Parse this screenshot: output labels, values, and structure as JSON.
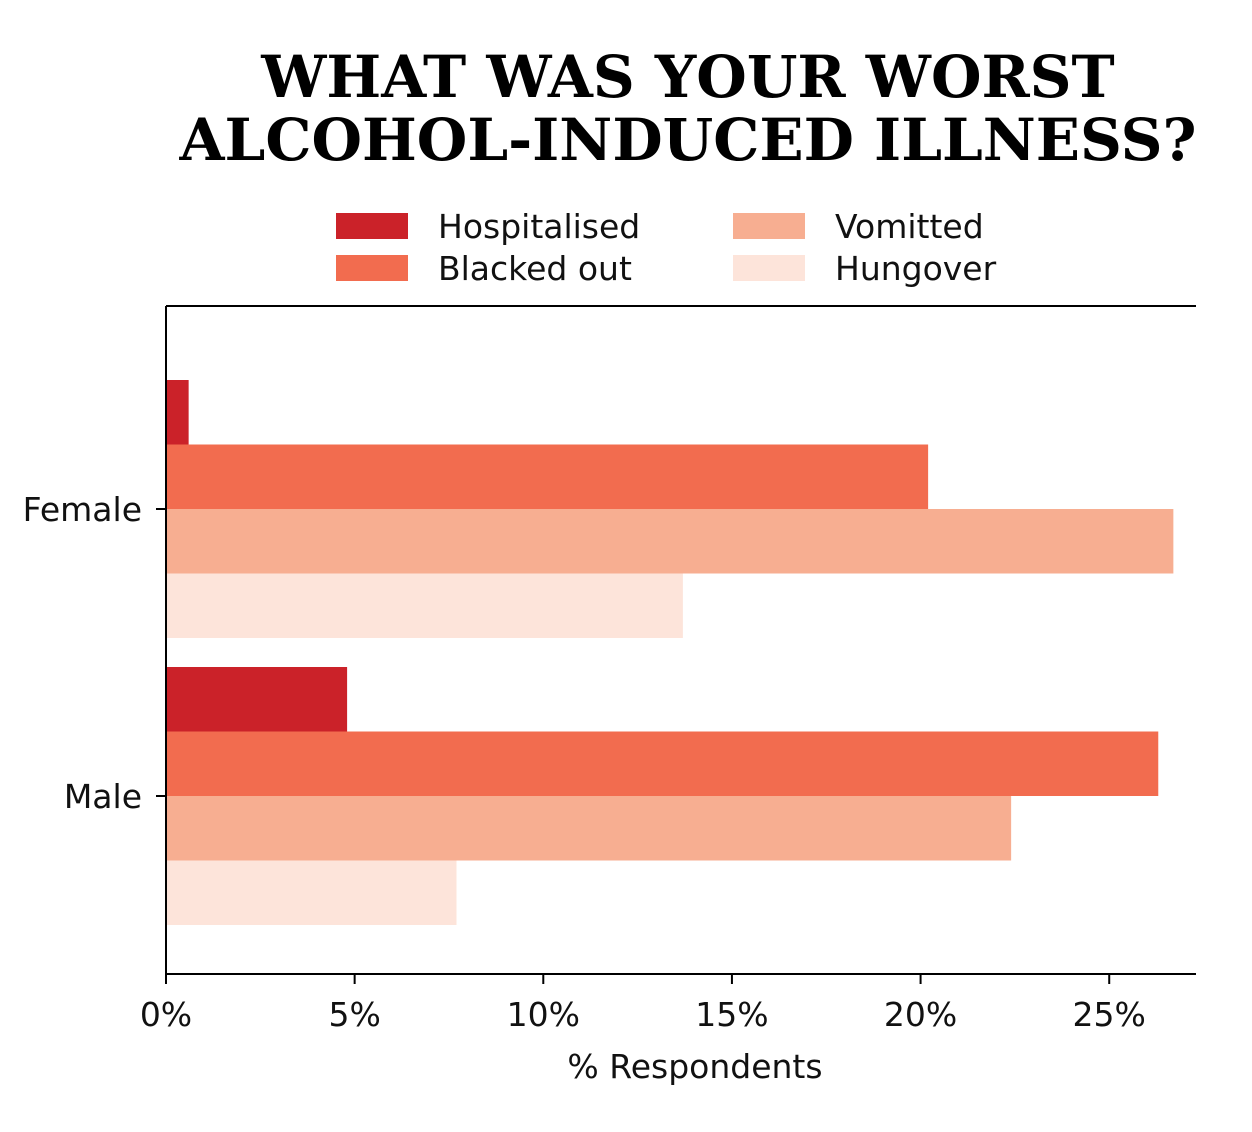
{
  "chart_data": {
    "type": "bar",
    "orientation": "horizontal",
    "title_lines": [
      "WHAT WAS YOUR WORST",
      "ALCOHOL-INDUCED ILLNESS?"
    ],
    "categories": [
      "Female",
      "Male"
    ],
    "series": [
      {
        "name": "Hospitalised",
        "color": "#cb2229",
        "values": [
          0.6,
          4.8
        ]
      },
      {
        "name": "Blacked out",
        "color": "#f26c4f",
        "values": [
          20.2,
          26.3
        ]
      },
      {
        "name": "Vomitted",
        "color": "#f7ae91",
        "values": [
          26.7,
          22.4
        ]
      },
      {
        "name": "Hungover",
        "color": "#fde4da",
        "values": [
          13.7,
          7.7
        ]
      }
    ],
    "xlabel": "% Respondents",
    "ylabel": "",
    "xlim": [
      0,
      27.3
    ],
    "xticks": [
      0,
      5,
      10,
      15,
      20,
      25
    ],
    "xtick_labels": [
      "0%",
      "5%",
      "10%",
      "15%",
      "20%",
      "25%"
    ],
    "legend_position": "top-center",
    "grid": false
  }
}
